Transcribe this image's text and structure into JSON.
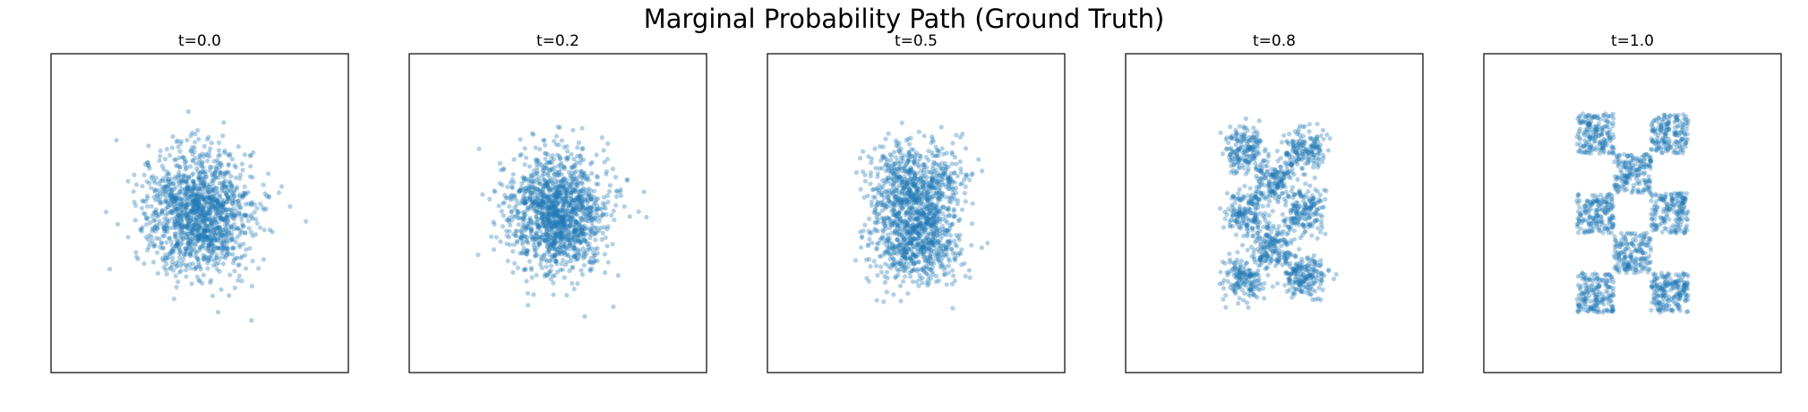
{
  "figure": {
    "title": "Marginal Probability Path (Ground Truth)"
  },
  "colors": {
    "points": "#1f77b4",
    "frame": "#000000",
    "background": "#ffffff"
  },
  "chart_data": [
    {
      "type": "scatter",
      "title": "t=0.0",
      "t": 0.0,
      "xlim": [
        -4,
        4
      ],
      "ylim": [
        -4,
        4
      ],
      "grid": false,
      "axes_ticks": false,
      "distribution": "gaussian",
      "center": [
        0,
        0
      ],
      "std": 0.75
    },
    {
      "type": "scatter",
      "title": "t=0.2",
      "t": 0.2,
      "xlim": [
        -4,
        4
      ],
      "ylim": [
        -4,
        4
      ],
      "grid": false,
      "axes_ticks": false,
      "distribution": "gaussian",
      "center": [
        0,
        0
      ],
      "std": 0.85
    },
    {
      "type": "scatter",
      "title": "t=0.5",
      "t": 0.5,
      "xlim": [
        -4,
        4
      ],
      "ylim": [
        -4,
        4
      ],
      "grid": false,
      "axes_ticks": false,
      "distribution": "interpolated-checkerboard",
      "center": [
        0,
        0
      ]
    },
    {
      "type": "scatter",
      "title": "t=0.8",
      "t": 0.8,
      "xlim": [
        -4,
        4
      ],
      "ylim": [
        -4,
        4
      ],
      "grid": false,
      "axes_ticks": false,
      "distribution": "interpolated-checkerboard",
      "center": [
        0,
        0
      ]
    },
    {
      "type": "scatter",
      "title": "t=1.0",
      "t": 1.0,
      "xlim": [
        -4,
        4
      ],
      "ylim": [
        -4,
        4
      ],
      "grid": false,
      "axes_ticks": false,
      "distribution": "checkerboard",
      "cells": [
        [
          -2,
          0
        ],
        [
          0,
          -2
        ],
        [
          0,
          0
        ],
        [
          -2,
          2
        ],
        [
          0,
          2
        ],
        [
          -2,
          -2
        ],
        [
          2,
          0
        ],
        [
          2,
          -2
        ],
        [
          2,
          2
        ]
      ],
      "occupied_cells": [
        [
          -1,
          0
        ],
        [
          1,
          0
        ],
        [
          0,
          1
        ],
        [
          0,
          -1
        ],
        [
          -1,
          2
        ],
        [
          1,
          2
        ],
        [
          -1,
          -2
        ],
        [
          1,
          -2
        ]
      ]
    }
  ]
}
